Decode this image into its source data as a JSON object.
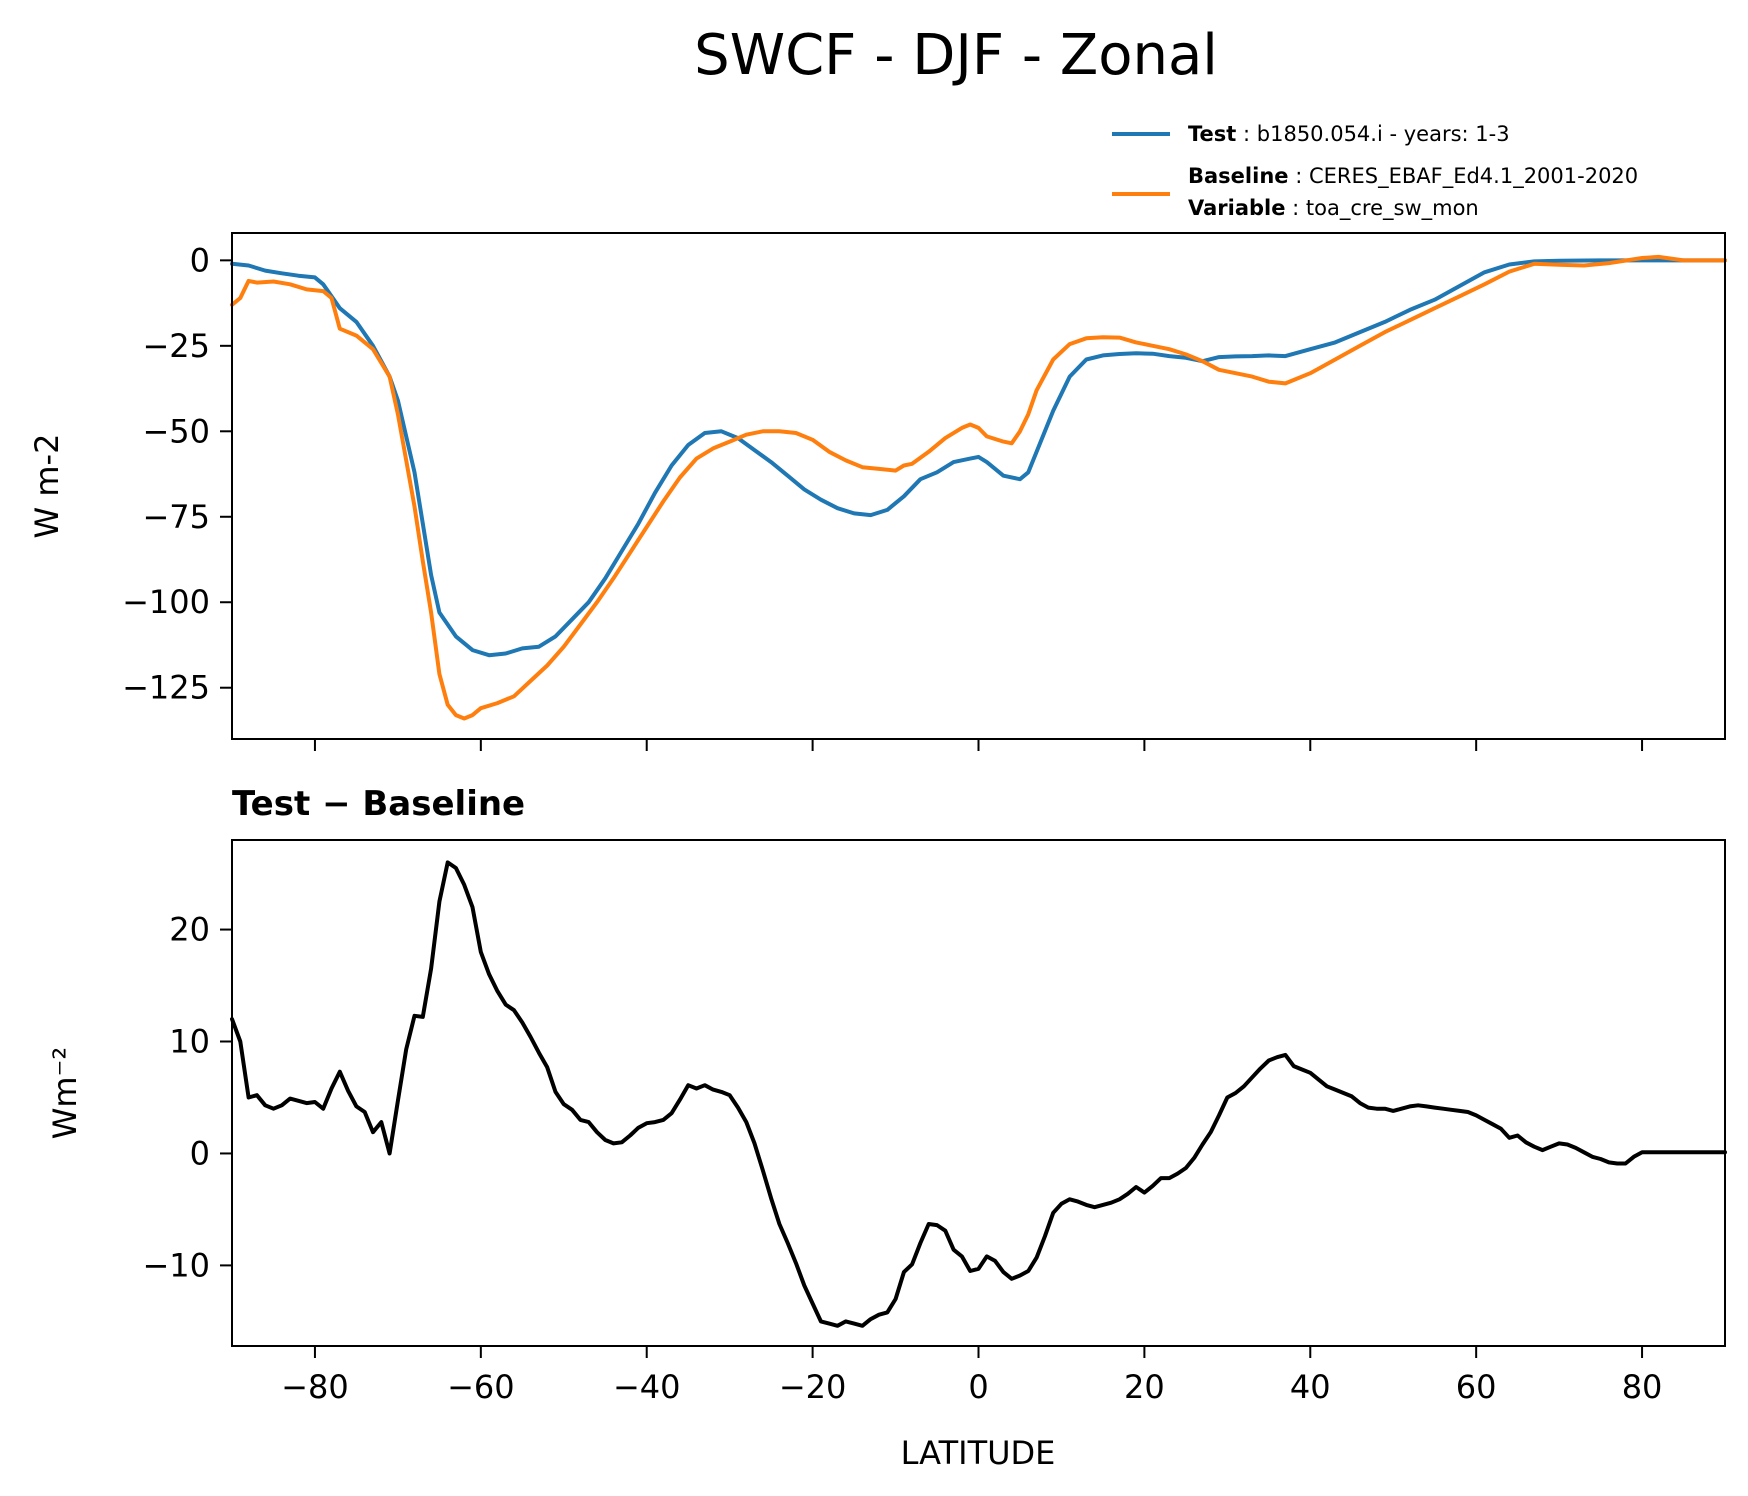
{
  "figure": {
    "title": "SWCF - DJF - Zonal",
    "colors": {
      "test": "#1f77b4",
      "baseline": "#ff7f0e",
      "diff": "#000000"
    }
  },
  "legend": {
    "test": {
      "key": "Test",
      "value": "b1850.054.i - years: 1-3"
    },
    "baseline": {
      "key": "Baseline",
      "value": "CERES_EBAF_Ed4.1_2001-2020"
    },
    "variable": {
      "key": "Variable",
      "value": "toa_cre_sw_mon"
    }
  },
  "chart_data": [
    {
      "type": "line",
      "title": "",
      "xlabel": "",
      "ylabel": "W m-2",
      "xlim": [
        -90,
        90
      ],
      "ylim": [
        -140,
        8
      ],
      "xticks": [
        -80,
        -60,
        -40,
        -20,
        0,
        20,
        40,
        60,
        80
      ],
      "yticks": [
        0,
        -25,
        -50,
        -75,
        -100,
        -125
      ],
      "grid": false,
      "legend_position": "above-right",
      "series": [
        {
          "name": "Test",
          "color": "#1f77b4",
          "x": [
            -90,
            -88,
            -86,
            -84,
            -82,
            -80,
            -79,
            -77,
            -75,
            -73,
            -71,
            -70,
            -68,
            -66,
            -65,
            -63,
            -61,
            -59,
            -57,
            -55,
            -53,
            -51,
            -49,
            -47,
            -45,
            -43,
            -41,
            -39,
            -37,
            -35,
            -33,
            -31,
            -29,
            -27,
            -25,
            -23,
            -21,
            -19,
            -17,
            -15,
            -13,
            -11,
            -9,
            -7,
            -5,
            -3,
            -1,
            0,
            1,
            3,
            5,
            6,
            7,
            9,
            11,
            13,
            15,
            17,
            19,
            21,
            23,
            25,
            27,
            29,
            31,
            33,
            35,
            37,
            40,
            43,
            46,
            49,
            52,
            55,
            58,
            61,
            64,
            67,
            70,
            75,
            80,
            85,
            90
          ],
          "values": [
            -1,
            -1.5,
            -3,
            -3.8,
            -4.5,
            -5,
            -7,
            -14,
            -18,
            -25,
            -34,
            -41,
            -62,
            -92,
            -103,
            -110,
            -114,
            -115.5,
            -115,
            -113.5,
            -113,
            -110,
            -105,
            -100,
            -93,
            -85,
            -77,
            -68,
            -60,
            -54,
            -50.5,
            -50,
            -52,
            -55.5,
            -59,
            -63,
            -67,
            -70,
            -72.5,
            -74,
            -74.5,
            -73,
            -69,
            -64,
            -62,
            -59,
            -58,
            -57.5,
            -59,
            -63,
            -64,
            -62,
            -56,
            -44,
            -34,
            -29,
            -27.8,
            -27.4,
            -27.2,
            -27.3,
            -28,
            -28.5,
            -29.5,
            -28.3,
            -28.1,
            -28,
            -27.8,
            -28,
            -26,
            -24,
            -21,
            -18,
            -14.5,
            -11.5,
            -7.5,
            -3.5,
            -1.2,
            -0.3,
            -0.1,
            0,
            0,
            0,
            0
          ]
        },
        {
          "name": "Baseline",
          "color": "#ff7f0e",
          "x": [
            -90,
            -89,
            -88,
            -87,
            -85,
            -83,
            -81,
            -79,
            -78,
            -77,
            -75,
            -73,
            -71,
            -70,
            -68,
            -67,
            -66,
            -65,
            -64,
            -63,
            -62,
            -61,
            -60,
            -58,
            -56,
            -54,
            -52,
            -50,
            -48,
            -46,
            -44,
            -42,
            -40,
            -38,
            -36,
            -34,
            -32,
            -30,
            -28,
            -26,
            -24,
            -22,
            -20,
            -18,
            -16,
            -14,
            -12,
            -10,
            -9,
            -8,
            -6,
            -4,
            -2,
            -1,
            0,
            1,
            3,
            4,
            5,
            6,
            7,
            9,
            11,
            13,
            15,
            17,
            19,
            21,
            23,
            25,
            27,
            29,
            31,
            33,
            35,
            37,
            40,
            43,
            46,
            49,
            52,
            55,
            58,
            61,
            64,
            67,
            70,
            73,
            76,
            80,
            82,
            85,
            90
          ],
          "values": [
            -13,
            -11,
            -6,
            -6.5,
            -6.2,
            -7,
            -8.5,
            -9,
            -11,
            -20,
            -22,
            -26,
            -34,
            -45,
            -72,
            -88,
            -103,
            -121,
            -130,
            -133,
            -134,
            -133,
            -131,
            -129.5,
            -127.5,
            -123,
            -118.5,
            -113,
            -106.5,
            -100,
            -93,
            -85.5,
            -78,
            -70.5,
            -63.5,
            -58,
            -55,
            -53,
            -51,
            -50,
            -50,
            -50.5,
            -52.5,
            -56,
            -58.5,
            -60.5,
            -61,
            -61.5,
            -60,
            -59.5,
            -56,
            -52,
            -49,
            -48,
            -49,
            -51.5,
            -53,
            -53.5,
            -50,
            -45,
            -38,
            -29,
            -24.5,
            -22.8,
            -22.5,
            -22.6,
            -24,
            -25,
            -26,
            -27.5,
            -29.5,
            -32,
            -33,
            -34,
            -35.5,
            -36,
            -33,
            -29,
            -25,
            -21,
            -17.5,
            -14,
            -10.5,
            -7,
            -3.3,
            -1,
            -1.3,
            -1.5,
            -0.8,
            0.7,
            1,
            0,
            0
          ]
        }
      ]
    },
    {
      "type": "line",
      "title": "Test − Baseline",
      "xlabel": "LATITUDE",
      "ylabel": "Wm⁻²",
      "xlim": [
        -90,
        90
      ],
      "ylim": [
        -17.2,
        28
      ],
      "xticks": [
        -80,
        -60,
        -40,
        -20,
        0,
        20,
        40,
        60,
        80
      ],
      "yticks": [
        20,
        10,
        0,
        -10
      ],
      "grid": false,
      "series": [
        {
          "name": "",
          "color": "#000000",
          "x": [
            -90,
            -89,
            -88,
            -87,
            -86,
            -85,
            -84,
            -83,
            -82,
            -81,
            -80,
            -79,
            -78,
            -77,
            -76,
            -75,
            -74,
            -73,
            -72,
            -71,
            -70,
            -69,
            -68,
            -67,
            -66,
            -65,
            -64,
            -63,
            -62,
            -61,
            -60,
            -59,
            -58,
            -57,
            -56,
            -55,
            -54,
            -53,
            -52,
            -51,
            -50,
            -49,
            -48,
            -47,
            -46,
            -45,
            -44,
            -43,
            -42,
            -41,
            -40,
            -39,
            -38,
            -37,
            -36,
            -35,
            -34,
            -33,
            -32,
            -31,
            -30,
            -29,
            -28,
            -27,
            -26,
            -25,
            -24,
            -23,
            -22,
            -21,
            -20,
            -19,
            -18,
            -17,
            -16,
            -15,
            -14,
            -13,
            -12,
            -11,
            -10,
            -9,
            -8,
            -7,
            -6,
            -5,
            -4,
            -3,
            -2,
            -1,
            0,
            1,
            2,
            3,
            4,
            5,
            6,
            7,
            8,
            9,
            10,
            11,
            12,
            13,
            14,
            15,
            16,
            17,
            18,
            19,
            20,
            21,
            22,
            23,
            24,
            25,
            26,
            27,
            28,
            29,
            30,
            31,
            32,
            33,
            34,
            35,
            36,
            37,
            38,
            39,
            40,
            41,
            42,
            43,
            44,
            45,
            46,
            47,
            48,
            49,
            50,
            51,
            52,
            53,
            54,
            55,
            56,
            57,
            58,
            59,
            60,
            61,
            62,
            63,
            64,
            65,
            66,
            67,
            68,
            69,
            70,
            71,
            72,
            73,
            74,
            75,
            76,
            77,
            78,
            79,
            80,
            81,
            82,
            83,
            84,
            85,
            86,
            87,
            88,
            89,
            90
          ],
          "values": [
            12,
            10,
            5,
            5.2,
            4.3,
            4.0,
            4.3,
            4.9,
            4.7,
            4.5,
            4.6,
            4.0,
            5.8,
            7.3,
            5.6,
            4.2,
            3.7,
            1.9,
            2.8,
            0,
            4.7,
            9.3,
            12.3,
            12.2,
            16.5,
            22.5,
            26,
            25.5,
            24,
            22,
            18,
            16,
            14.5,
            13.3,
            12.8,
            11.7,
            10.4,
            9,
            7.7,
            5.5,
            4.4,
            3.9,
            3.0,
            2.8,
            1.9,
            1.2,
            0.9,
            1.0,
            1.6,
            2.3,
            2.7,
            2.8,
            3.0,
            3.6,
            4.8,
            6.1,
            5.8,
            6.1,
            5.7,
            5.5,
            5.2,
            4.1,
            2.8,
            0.9,
            -1.5,
            -4.0,
            -6.3,
            -8.0,
            -9.8,
            -11.8,
            -13.4,
            -15.0,
            -15.2,
            -15.4,
            -15.0,
            -15.2,
            -15.4,
            -14.8,
            -14.4,
            -14.2,
            -13.0,
            -10.6,
            -9.9,
            -8.0,
            -6.3,
            -6.4,
            -6.9,
            -8.6,
            -9.2,
            -10.5,
            -10.3,
            -9.2,
            -9.6,
            -10.6,
            -11.2,
            -10.9,
            -10.5,
            -9.3,
            -7.4,
            -5.3,
            -4.5,
            -4.1,
            -4.3,
            -4.6,
            -4.8,
            -4.6,
            -4.4,
            -4.1,
            -3.6,
            -3.0,
            -3.5,
            -2.9,
            -2.2,
            -2.2,
            -1.8,
            -1.3,
            -0.4,
            0.8,
            1.9,
            3.4,
            5.0,
            5.4,
            6.0,
            6.8,
            7.6,
            8.3,
            8.6,
            8.8,
            7.8,
            7.5,
            7.2,
            6.6,
            6.0,
            5.7,
            5.4,
            5.1,
            4.5,
            4.1,
            4.0,
            4.0,
            3.8,
            4.0,
            4.2,
            4.3,
            4.2,
            4.1,
            4.0,
            3.9,
            3.8,
            3.7,
            3.4,
            3.0,
            2.6,
            2.2,
            1.4,
            1.6,
            1.0,
            0.6,
            0.3,
            0.6,
            0.9,
            0.8,
            0.5,
            0.1,
            -0.3,
            -0.5,
            -0.8,
            -0.9,
            -0.9,
            -0.3,
            0.1,
            0.1,
            0.1,
            0.1,
            0.1,
            0.1,
            0.1,
            0.1,
            0.1,
            0.1,
            0.1
          ]
        }
      ]
    }
  ]
}
